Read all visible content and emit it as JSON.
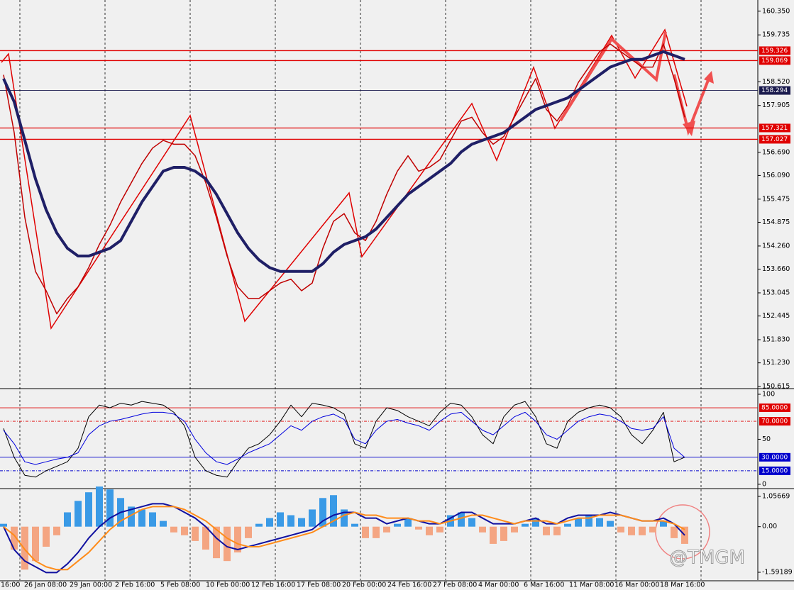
{
  "chart_data": [
    {
      "type": "line",
      "ylim": [
        150.58,
        160.64
      ],
      "yticks": [
        {
          "value": 160.35,
          "label": "160.350"
        },
        159.735,
        {
          "value": 158.52,
          "label": "158.520"
        },
        157.905,
        {
          "value": 156.69,
          "label": "156.690"
        },
        {
          "value": 156.09,
          "label": "156.090"
        },
        155.475,
        154.875,
        {
          "value": 154.26,
          "label": "154.260"
        },
        {
          "value": 153.66,
          "label": "153.660"
        },
        153.045,
        152.445,
        {
          "value": 151.83,
          "label": "151.830"
        },
        {
          "value": 151.23,
          "label": "151.230"
        },
        150.615
      ],
      "levels": [
        {
          "value": 159.326,
          "color": "#e00000"
        },
        {
          "value": 159.069,
          "color": "#e00000"
        },
        {
          "value": 158.294,
          "color": "#1a1a4d"
        },
        {
          "value": 157.321,
          "color": "#e00000"
        },
        {
          "value": 157.027,
          "color": "#e00000"
        }
      ],
      "series": [
        {
          "color": "#c00000",
          "width": 1.5,
          "values": [
            158.7,
            157.2,
            155.0,
            153.6,
            153.1,
            152.5,
            152.9,
            153.2,
            153.7,
            154.3,
            154.8,
            155.4,
            155.9,
            156.4,
            156.8,
            157.0,
            156.9,
            156.9,
            156.6,
            155.9,
            155.0,
            154.0,
            153.2,
            152.9,
            152.9,
            153.1,
            153.3,
            153.4,
            153.1,
            153.3,
            154.2,
            154.9,
            155.1,
            154.6,
            154.4,
            154.9,
            155.6,
            156.2,
            156.6,
            156.2,
            156.3,
            156.5,
            157.0,
            157.5,
            157.6,
            157.2,
            156.9,
            157.1,
            157.6,
            158.1,
            158.6,
            157.8,
            157.5,
            157.9,
            158.5,
            158.9,
            159.3,
            159.5,
            159.3,
            159.1,
            158.9,
            158.9,
            159.5,
            158.6,
            157.6
          ]
        },
        {
          "color": "#1f1f66",
          "width": 4,
          "values": [
            158.6,
            158.0,
            157.0,
            156.0,
            155.2,
            154.6,
            154.2,
            154.0,
            154.0,
            154.1,
            154.2,
            154.4,
            154.9,
            155.4,
            155.8,
            156.2,
            156.3,
            156.3,
            156.2,
            156.0,
            155.6,
            155.1,
            154.6,
            154.2,
            153.9,
            153.7,
            153.6,
            153.6,
            153.6,
            153.6,
            153.8,
            154.1,
            154.3,
            154.4,
            154.5,
            154.7,
            155.0,
            155.3,
            155.6,
            155.8,
            156.0,
            156.2,
            156.4,
            156.7,
            156.9,
            157.0,
            157.1,
            157.2,
            157.4,
            157.6,
            157.8,
            157.9,
            158.0,
            158.1,
            158.3,
            158.5,
            158.7,
            158.9,
            159.0,
            159.1,
            159.1,
            159.2,
            159.3,
            159.2,
            159.1
          ]
        }
      ]
    },
    {
      "type": "line",
      "ylim": [
        -4,
        105.5
      ],
      "yticks": [
        100,
        50,
        0
      ],
      "levels": [
        {
          "value": 85,
          "label": "85.0000",
          "color": "#e00000"
        },
        {
          "value": 70,
          "label": "70.0000",
          "color": "#e00000"
        },
        {
          "value": 30,
          "label": "30.0000",
          "color": "#0000cc"
        },
        {
          "value": 15,
          "label": "15.0000",
          "color": "#0000cc"
        }
      ],
      "series": [
        {
          "color": "#000000",
          "width": 1,
          "values": [
            62,
            30,
            10,
            8,
            15,
            20,
            25,
            40,
            75,
            88,
            85,
            90,
            88,
            92,
            90,
            88,
            80,
            65,
            30,
            15,
            10,
            8,
            25,
            40,
            45,
            55,
            70,
            88,
            75,
            90,
            88,
            85,
            78,
            45,
            40,
            70,
            85,
            82,
            75,
            70,
            65,
            80,
            90,
            88,
            75,
            55,
            45,
            75,
            88,
            92,
            75,
            45,
            40,
            70,
            80,
            85,
            88,
            85,
            75,
            55,
            45,
            60,
            80,
            25,
            30
          ]
        },
        {
          "color": "#0000dd",
          "width": 1,
          "values": [
            60,
            45,
            25,
            22,
            25,
            28,
            30,
            35,
            55,
            65,
            70,
            72,
            75,
            78,
            80,
            80,
            78,
            70,
            50,
            35,
            25,
            22,
            28,
            35,
            40,
            45,
            55,
            65,
            60,
            70,
            75,
            78,
            72,
            50,
            45,
            60,
            70,
            72,
            68,
            65,
            60,
            70,
            78,
            80,
            70,
            60,
            55,
            65,
            75,
            80,
            70,
            55,
            50,
            60,
            70,
            75,
            78,
            76,
            70,
            62,
            60,
            62,
            75,
            40,
            30
          ]
        }
      ]
    },
    {
      "type": "bar",
      "ylim": [
        -1.864,
        1.304
      ],
      "yticks": [
        1.05669,
        {
          "value": 0,
          "label": "0.00"
        },
        -1.59189
      ],
      "series": [
        {
          "type": "bar",
          "color": "#3a9ae6",
          "negative_color": "#f4a582",
          "values": [
            0.1,
            -0.8,
            -1.5,
            -1.2,
            -0.7,
            -0.3,
            0.5,
            0.9,
            1.2,
            1.4,
            1.3,
            1.0,
            0.7,
            0.6,
            0.5,
            0.2,
            -0.2,
            -0.3,
            -0.5,
            -0.8,
            -1.1,
            -1.2,
            -0.9,
            -0.4,
            0.1,
            0.3,
            0.5,
            0.4,
            0.3,
            0.6,
            1.0,
            1.1,
            0.6,
            0.1,
            -0.4,
            -0.4,
            -0.2,
            0.1,
            0.3,
            -0.1,
            -0.3,
            -0.2,
            0.4,
            0.5,
            0.3,
            -0.2,
            -0.6,
            -0.5,
            -0.2,
            0.1,
            0.3,
            -0.3,
            -0.3,
            0.1,
            0.3,
            0.4,
            0.3,
            0.2,
            -0.2,
            -0.3,
            -0.3,
            -0.2,
            0.2,
            -0.4,
            -0.6
          ]
        },
        {
          "type": "line",
          "color": "#1010a0",
          "width": 2,
          "values": [
            0.0,
            -0.8,
            -1.2,
            -1.4,
            -1.6,
            -1.6,
            -1.3,
            -0.9,
            -0.4,
            0.0,
            0.3,
            0.5,
            0.6,
            0.7,
            0.8,
            0.8,
            0.7,
            0.5,
            0.3,
            0.0,
            -0.4,
            -0.7,
            -0.8,
            -0.7,
            -0.6,
            -0.5,
            -0.4,
            -0.3,
            -0.2,
            -0.1,
            0.2,
            0.4,
            0.5,
            0.5,
            0.3,
            0.3,
            0.1,
            0.2,
            0.3,
            0.2,
            0.1,
            0.1,
            0.3,
            0.5,
            0.5,
            0.3,
            0.1,
            0.1,
            0.1,
            0.2,
            0.3,
            0.1,
            0.1,
            0.3,
            0.4,
            0.4,
            0.4,
            0.5,
            0.4,
            0.3,
            0.2,
            0.2,
            0.3,
            0.1,
            -0.3
          ]
        },
        {
          "type": "line",
          "color": "#ff8c1a",
          "width": 2,
          "values": [
            0.0,
            -0.3,
            -0.8,
            -1.2,
            -1.4,
            -1.5,
            -1.5,
            -1.2,
            -0.9,
            -0.5,
            -0.1,
            0.2,
            0.4,
            0.6,
            0.7,
            0.7,
            0.7,
            0.6,
            0.4,
            0.2,
            -0.1,
            -0.4,
            -0.6,
            -0.7,
            -0.7,
            -0.6,
            -0.5,
            -0.4,
            -0.3,
            -0.2,
            0.0,
            0.2,
            0.4,
            0.5,
            0.4,
            0.4,
            0.3,
            0.3,
            0.3,
            0.2,
            0.2,
            0.1,
            0.2,
            0.3,
            0.4,
            0.4,
            0.3,
            0.2,
            0.1,
            0.2,
            0.2,
            0.2,
            0.1,
            0.2,
            0.3,
            0.3,
            0.4,
            0.4,
            0.4,
            0.3,
            0.2,
            0.2,
            0.2,
            0.1,
            -0.1
          ]
        }
      ],
      "time_axis_labels": [
        "16:00",
        "26 Jan 08:00",
        "29 Jan 00:00",
        "2 Feb 16:00",
        "5 Feb 08:00",
        "10 Feb 00:00",
        "12 Feb 16:00",
        "17 Feb 08:00",
        "20 Feb 00:00",
        "24 Feb 16:00",
        "27 Feb 08:00",
        "4 Mar 00:00",
        "6 Mar 16:00",
        "11 Mar 08:00",
        "16 Mar 00:00",
        "18 Mar 16:00"
      ],
      "watermark": "@TMGM"
    }
  ]
}
